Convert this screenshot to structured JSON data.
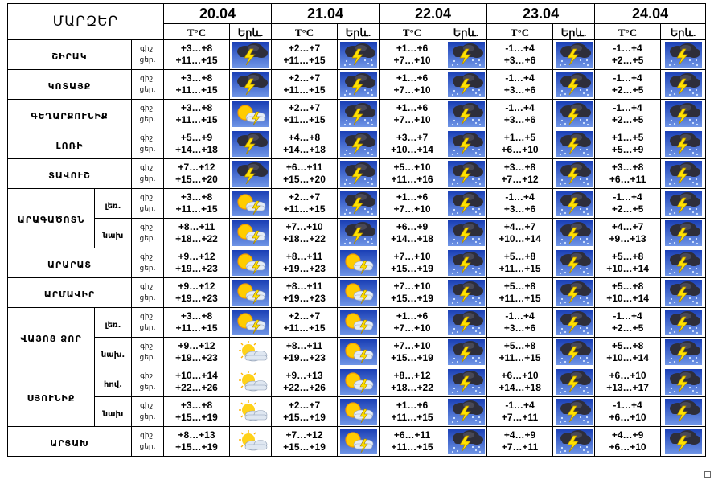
{
  "header": {
    "title": "ՄԱՐԶԵՐ",
    "temp_label": "T°C",
    "weather_label": "Երև."
  },
  "dates": [
    "20.04",
    "21.04",
    "22.04",
    "23.04",
    "24.04"
  ],
  "rows": [
    {
      "region": "ՇԻՐԱԿ",
      "sub": "",
      "labels": [
        "գիշ.",
        "ցեր."
      ],
      "days": [
        {
          "night": "+3…+8",
          "day": "+11…+15",
          "icon": "storm-icon"
        },
        {
          "night": "+2…+7",
          "day": "+11…+15",
          "icon": "storm-rain-icon"
        },
        {
          "night": "+1…+6",
          "day": "+7…+10",
          "icon": "storm-rain-icon"
        },
        {
          "night": "-1…+4",
          "day": "+3…+6",
          "icon": "storm-rain-icon"
        },
        {
          "night": "-1…+4",
          "day": "+2…+5",
          "icon": "storm-rain-icon"
        }
      ]
    },
    {
      "region": "ԿՈՏԱՅՔ",
      "sub": "",
      "labels": [
        "գիշ.",
        "ցեր."
      ],
      "days": [
        {
          "night": "+3…+8",
          "day": "+11…+15",
          "icon": "storm-icon"
        },
        {
          "night": "+2…+7",
          "day": "+11…+15",
          "icon": "storm-rain-icon"
        },
        {
          "night": "+1…+6",
          "day": "+7…+10",
          "icon": "storm-rain-icon"
        },
        {
          "night": "-1…+4",
          "day": "+3…+6",
          "icon": "storm-rain-icon"
        },
        {
          "night": "-1…+4",
          "day": "+2…+5",
          "icon": "storm-rain-icon"
        }
      ]
    },
    {
      "region": "ԳԵՂԱՐՔՈՒՆԻՔ",
      "sub": "",
      "labels": [
        "գիշ.",
        "ցեր."
      ],
      "days": [
        {
          "night": "+3…+8",
          "day": "+11…+15",
          "icon": "sun-storm-icon"
        },
        {
          "night": "+2…+7",
          "day": "+11…+15",
          "icon": "storm-rain-icon"
        },
        {
          "night": "+1…+6",
          "day": "+7…+10",
          "icon": "storm-rain-icon"
        },
        {
          "night": "-1…+4",
          "day": "+3…+6",
          "icon": "storm-rain-icon"
        },
        {
          "night": "-1…+4",
          "day": "+2…+5",
          "icon": "storm-rain-icon"
        }
      ]
    },
    {
      "region": "ԼՈՌԻ",
      "sub": "",
      "labels": [
        "գիշ.",
        "ցեր."
      ],
      "days": [
        {
          "night": "+5…+9",
          "day": "+14…+18",
          "icon": "storm-icon"
        },
        {
          "night": "+4…+8",
          "day": "+14…+18",
          "icon": "storm-rain-icon"
        },
        {
          "night": "+3…+7",
          "day": "+10…+14",
          "icon": "storm-rain-icon"
        },
        {
          "night": "+1…+5",
          "day": "+6…+10",
          "icon": "storm-rain-icon"
        },
        {
          "night": "+1…+5",
          "day": "+5…+9",
          "icon": "storm-rain-icon"
        }
      ]
    },
    {
      "region": "ՏԱՎՈՒՇ",
      "sub": "",
      "labels": [
        "գիշ.",
        "ցեր."
      ],
      "days": [
        {
          "night": "+7…+12",
          "day": "+15…+20",
          "icon": "storm-icon"
        },
        {
          "night": "+6…+11",
          "day": "+15…+20",
          "icon": "storm-rain-icon"
        },
        {
          "night": "+5…+10",
          "day": "+11…+16",
          "icon": "storm-rain-icon"
        },
        {
          "night": "+3…+8",
          "day": "+7…+12",
          "icon": "storm-rain-icon"
        },
        {
          "night": "+3…+8",
          "day": "+6…+11",
          "icon": "storm-rain-icon"
        }
      ]
    },
    {
      "region": "ԱՐԱԳԱԾՈՏՆ",
      "sub": "լեռ.",
      "labels": [
        "գիշ.",
        "ցեր."
      ],
      "days": [
        {
          "night": "+3…+8",
          "day": "+11…+15",
          "icon": "sun-storm-icon"
        },
        {
          "night": "+2…+7",
          "day": "+11…+15",
          "icon": "storm-rain-icon"
        },
        {
          "night": "+1…+6",
          "day": "+7…+10",
          "icon": "storm-rain-icon"
        },
        {
          "night": "-1…+4",
          "day": "+3…+6",
          "icon": "storm-rain-icon"
        },
        {
          "night": "-1…+4",
          "day": "+2…+5",
          "icon": "storm-rain-icon"
        }
      ]
    },
    {
      "region": "",
      "sub": "նախ",
      "labels": [
        "գիշ.",
        "ցեր."
      ],
      "days": [
        {
          "night": "+8…+11",
          "day": "+18…+22",
          "icon": "sun-storm-icon"
        },
        {
          "night": "+7…+10",
          "day": "+18…+22",
          "icon": "storm-rain-icon"
        },
        {
          "night": "+6…+9",
          "day": "+14…+18",
          "icon": "storm-rain-icon"
        },
        {
          "night": "+4…+7",
          "day": "+10…+14",
          "icon": "storm-rain-icon"
        },
        {
          "night": "+4…+7",
          "day": "+9…+13",
          "icon": "storm-rain-icon"
        }
      ]
    },
    {
      "region": "ԱՐԱՐԱՏ",
      "sub": "",
      "labels": [
        "գիշ.",
        "ցեր."
      ],
      "days": [
        {
          "night": "+9…+12",
          "day": "+19…+23",
          "icon": "sun-storm-icon"
        },
        {
          "night": "+8…+11",
          "day": "+19…+23",
          "icon": "sun-storm-icon"
        },
        {
          "night": "+7…+10",
          "day": "+15…+19",
          "icon": "storm-rain-icon"
        },
        {
          "night": "+5…+8",
          "day": "+11…+15",
          "icon": "storm-rain-icon"
        },
        {
          "night": "+5…+8",
          "day": "+10…+14",
          "icon": "storm-rain-icon"
        }
      ]
    },
    {
      "region": "ԱՐՄԱՎԻՐ",
      "sub": "",
      "labels": [
        "գիշ.",
        "ցեր."
      ],
      "days": [
        {
          "night": "+9…+12",
          "day": "+19…+23",
          "icon": "sun-storm-icon"
        },
        {
          "night": "+8…+11",
          "day": "+19…+23",
          "icon": "sun-storm-icon"
        },
        {
          "night": "+7…+10",
          "day": "+15…+19",
          "icon": "storm-rain-icon"
        },
        {
          "night": "+5…+8",
          "day": "+11…+15",
          "icon": "storm-rain-icon"
        },
        {
          "night": "+5…+8",
          "day": "+10…+14",
          "icon": "storm-rain-icon"
        }
      ]
    },
    {
      "region": "ՎԱՅՈՑ ՁՈՐ",
      "sub": "լեռ.",
      "labels": [
        "գիշ.",
        "ցեր."
      ],
      "days": [
        {
          "night": "+3…+8",
          "day": "+11…+15",
          "icon": "sun-storm-icon"
        },
        {
          "night": "+2…+7",
          "day": "+11…+15",
          "icon": "sun-storm-icon"
        },
        {
          "night": "+1…+6",
          "day": "+7…+10",
          "icon": "storm-rain-icon"
        },
        {
          "night": "-1…+4",
          "day": "+3…+6",
          "icon": "storm-rain-icon"
        },
        {
          "night": "-1…+4",
          "day": "+2…+5",
          "icon": "storm-rain-icon"
        }
      ]
    },
    {
      "region": "",
      "sub": "նախ.",
      "labels": [
        "գիշ.",
        "ցեր."
      ],
      "days": [
        {
          "night": "+9…+12",
          "day": "+19…+23",
          "icon": "sun-cloud-icon"
        },
        {
          "night": "+8…+11",
          "day": "+19…+23",
          "icon": "sun-storm-icon"
        },
        {
          "night": "+7…+10",
          "day": "+15…+19",
          "icon": "storm-rain-icon"
        },
        {
          "night": "+5…+8",
          "day": "+11…+15",
          "icon": "storm-rain-icon"
        },
        {
          "night": "+5…+8",
          "day": "+10…+14",
          "icon": "storm-rain-icon"
        }
      ]
    },
    {
      "region": "ՍՅՈՒՆԻՔ",
      "sub": "հով.",
      "labels": [
        "գիշ.",
        "ցեր."
      ],
      "days": [
        {
          "night": "+10…+14",
          "day": "+22…+26",
          "icon": "sun-cloud-icon"
        },
        {
          "night": "+9…+13",
          "day": "+22…+26",
          "icon": "sun-storm-icon"
        },
        {
          "night": "+8…+12",
          "day": "+18…+22",
          "icon": "storm-rain-icon"
        },
        {
          "night": "+6…+10",
          "day": "+14…+18",
          "icon": "storm-rain-icon"
        },
        {
          "night": "+6…+10",
          "day": "+13…+17",
          "icon": "storm-rain-icon"
        }
      ]
    },
    {
      "region": "",
      "sub": "նախ",
      "labels": [
        "գիշ.",
        "ցեր."
      ],
      "days": [
        {
          "night": "+3…+8",
          "day": "+15…+19",
          "icon": "sun-cloud-icon"
        },
        {
          "night": "+2…+7",
          "day": "+15…+19",
          "icon": "sun-storm-icon"
        },
        {
          "night": "+1…+6",
          "day": "+11…+15",
          "icon": "storm-rain-icon"
        },
        {
          "night": "-1…+4",
          "day": "+7…+11",
          "icon": "storm-rain-icon"
        },
        {
          "night": "-1…+4",
          "day": "+6…+10",
          "icon": "storm-icon"
        }
      ]
    },
    {
      "region": "ԱՐՑԱԽ",
      "sub": "",
      "labels": [
        "գիշ.",
        "ցեր."
      ],
      "days": [
        {
          "night": "+8…+13",
          "day": "+15…+19",
          "icon": "sun-cloud-icon"
        },
        {
          "night": "+7…+12",
          "day": "+15…+19",
          "icon": "sun-storm-icon"
        },
        {
          "night": "+6…+11",
          "day": "+11…+15",
          "icon": "storm-rain-icon"
        },
        {
          "night": "+4…+9",
          "day": "+7…+11",
          "icon": "storm-rain-icon"
        },
        {
          "night": "+4…+9",
          "day": "+6…+10",
          "icon": "storm-icon"
        }
      ]
    }
  ]
}
